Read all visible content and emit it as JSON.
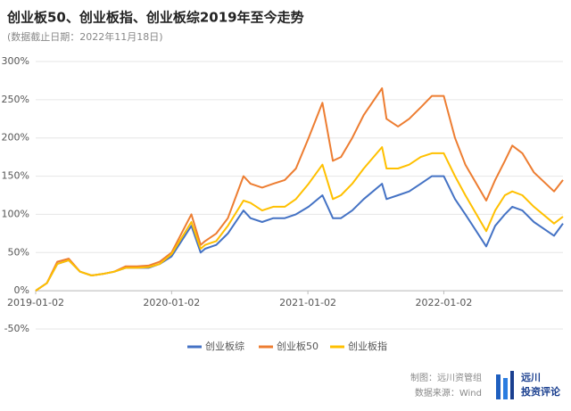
{
  "chart_data": {
    "type": "line",
    "title": "创业板50、创业板指、创业板综2019年至今走势",
    "subtitle": "(数据截止日期：2022年11月18日)",
    "x": [
      "2019-01-02",
      "2019-02-01",
      "2019-03-01",
      "2019-04-01",
      "2019-05-01",
      "2019-06-01",
      "2019-07-01",
      "2019-08-01",
      "2019-09-01",
      "2019-10-01",
      "2019-11-01",
      "2019-12-01",
      "2020-01-02",
      "2020-02-24",
      "2020-03-20",
      "2020-04-01",
      "2020-05-01",
      "2020-06-01",
      "2020-07-13",
      "2020-08-01",
      "2020-09-01",
      "2020-10-01",
      "2020-11-01",
      "2020-12-01",
      "2021-01-04",
      "2021-02-10",
      "2021-03-10",
      "2021-04-01",
      "2021-05-01",
      "2021-06-01",
      "2021-07-20",
      "2021-08-01",
      "2021-09-01",
      "2021-10-01",
      "2021-11-01",
      "2021-12-01",
      "2022-01-02",
      "2022-02-01",
      "2022-03-01",
      "2022-04-26",
      "2022-05-20",
      "2022-06-15",
      "2022-07-05",
      "2022-08-01",
      "2022-09-01",
      "2022-10-25",
      "2022-11-18"
    ],
    "series": [
      {
        "name": "创业板综",
        "color": "#4472c4",
        "values": [
          0,
          10,
          35,
          40,
          25,
          20,
          22,
          25,
          30,
          30,
          30,
          35,
          45,
          85,
          50,
          55,
          60,
          75,
          105,
          95,
          90,
          95,
          95,
          100,
          110,
          125,
          95,
          95,
          105,
          120,
          140,
          120,
          125,
          130,
          140,
          150,
          150,
          120,
          100,
          58,
          85,
          100,
          110,
          105,
          90,
          72,
          88
        ]
      },
      {
        "name": "创业板50",
        "color": "#ed7d31",
        "values": [
          0,
          10,
          38,
          42,
          25,
          20,
          22,
          25,
          32,
          32,
          33,
          38,
          50,
          100,
          60,
          65,
          75,
          95,
          150,
          140,
          135,
          140,
          145,
          160,
          200,
          246,
          170,
          175,
          200,
          230,
          265,
          225,
          215,
          225,
          240,
          255,
          255,
          200,
          165,
          118,
          145,
          170,
          190,
          180,
          155,
          130,
          145
        ]
      },
      {
        "name": "创业板指",
        "color": "#ffc000",
        "values": [
          0,
          10,
          35,
          40,
          25,
          20,
          22,
          25,
          30,
          30,
          31,
          35,
          48,
          90,
          55,
          60,
          65,
          85,
          118,
          115,
          105,
          110,
          110,
          120,
          140,
          165,
          120,
          125,
          140,
          160,
          188,
          160,
          160,
          165,
          175,
          180,
          180,
          150,
          125,
          78,
          105,
          125,
          130,
          125,
          110,
          88,
          97
        ]
      }
    ],
    "xlim": [
      "2019-01-02",
      "2022-11-18"
    ],
    "xticks": [
      "2019-01-02",
      "2020-01-02",
      "2021-01-02",
      "2022-01-02"
    ],
    "ylim": [
      -50,
      300
    ],
    "yticks": [
      {
        "value": -50,
        "label": "-50%"
      },
      {
        "value": 0,
        "label": "0%"
      },
      {
        "value": 50,
        "label": "50%"
      },
      {
        "value": 100,
        "label": "100%"
      },
      {
        "value": 150,
        "label": "150%"
      },
      {
        "value": 200,
        "label": "200%"
      },
      {
        "value": 250,
        "label": "250%"
      },
      {
        "value": 300,
        "label": "300%"
      }
    ],
    "grid": true,
    "legend": "bottom",
    "notes": [
      "制图：远川资管组",
      "数据来源：Wind"
    ],
    "logo": [
      "远川",
      "投资评论"
    ]
  }
}
